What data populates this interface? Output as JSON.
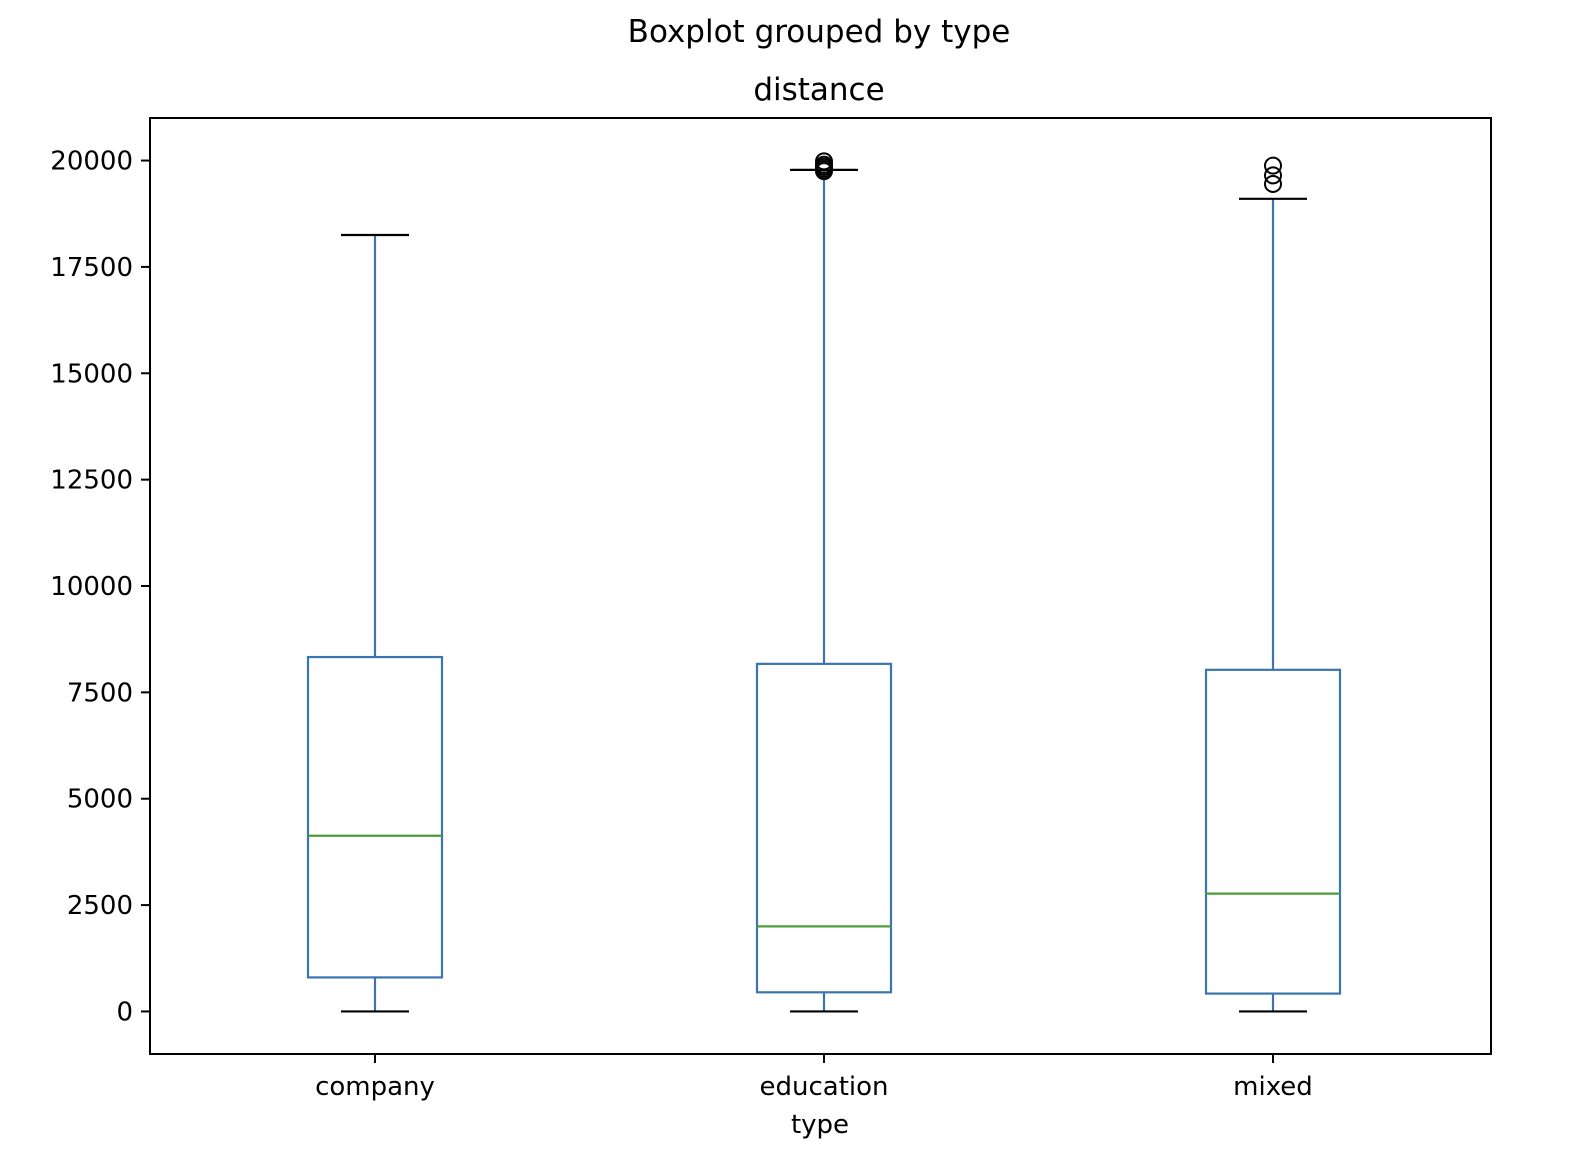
{
  "suptitle": "Boxplot grouped by type",
  "chart_data": {
    "type": "box",
    "title": "distance",
    "xlabel": "type",
    "ylabel": "",
    "categories": [
      "company",
      "education",
      "mixed"
    ],
    "ylim": [
      -1000,
      21000
    ],
    "yticks": [
      0,
      2500,
      5000,
      7500,
      10000,
      12500,
      15000,
      17500,
      20000
    ],
    "grid": false,
    "legend": "none",
    "colors": {
      "box": "#3a75af",
      "median": "#4a9e3a",
      "cap": "#000000",
      "flier": "#000000",
      "frame": "#000000"
    },
    "boxes": [
      {
        "category": "company",
        "whislo": 0,
        "q1": 800,
        "med": 4130,
        "q3": 8330,
        "whishi": 18250,
        "fliers": []
      },
      {
        "category": "education",
        "whislo": 0,
        "q1": 450,
        "med": 2000,
        "q3": 8170,
        "whishi": 19780,
        "fliers": [
          19750,
          19800,
          19850,
          19900,
          19980
        ]
      },
      {
        "category": "mixed",
        "whislo": 0,
        "q1": 420,
        "med": 2770,
        "q3": 8030,
        "whishi": 19100,
        "fliers": [
          19450,
          19650,
          19880
        ]
      }
    ]
  }
}
